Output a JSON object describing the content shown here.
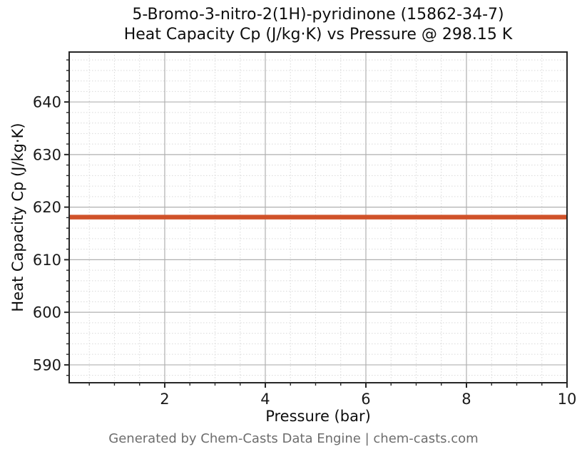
{
  "footer": {
    "text": "Generated by Chem-Casts Data Engine | chem-casts.com"
  },
  "colors": {
    "line": "#d0522a",
    "frame": "#262626",
    "grid_major": "#b0b0b0",
    "grid_minor": "#d9d9d9",
    "tick": "#262626",
    "tick_label": "#1a1a1a",
    "footer_text": "#6d6d6d"
  },
  "chart_data": {
    "type": "line",
    "title": "5-Bromo-3-nitro-2(1H)-pyridinone (15862-34-7)\nHeat Capacity Cp (J/kg·K) vs Pressure @ 298.15 K",
    "title_line1": "5-Bromo-3-nitro-2(1H)-pyridinone (15862-34-7)",
    "title_line2": "Heat Capacity Cp (J/kg·K) vs Pressure @ 298.15 K",
    "compound": "5-Bromo-3-nitro-2(1H)-pyridinone",
    "cas_number": "15862-34-7",
    "temperature": "298.15 K",
    "xlabel": "Pressure (bar)",
    "ylabel": "Heat Capacity Cp (J/kg·K)",
    "x_range": [
      0.1,
      10.0
    ],
    "y_range": [
      586.6,
      649.5
    ],
    "x_ticks": [
      2,
      4,
      6,
      8,
      10
    ],
    "y_ticks": [
      590,
      600,
      610,
      620,
      630,
      640
    ],
    "x_minor_step": 0.5,
    "y_minor_step": 2,
    "grid": {
      "major": "solid",
      "minor": "dashed",
      "visible": true
    },
    "legend": null,
    "series": [
      {
        "name": "Heat Capacity Cp vs Pressure",
        "color": "#d0522a",
        "line_width": 6.5,
        "x": [
          0.1,
          10.0
        ],
        "y": [
          618.1,
          618.1
        ],
        "constant_value": 618.1
      }
    ]
  }
}
